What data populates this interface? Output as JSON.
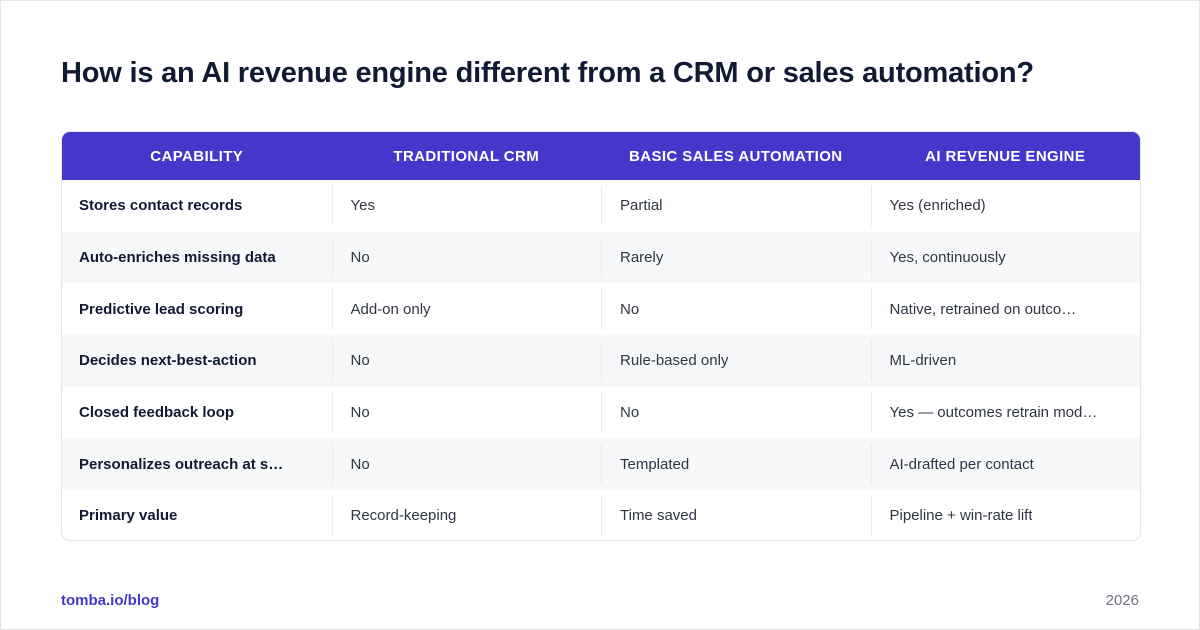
{
  "title": "How is an AI revenue engine different from a CRM or sales automation?",
  "table": {
    "headers": [
      "CAPABILITY",
      "TRADITIONAL CRM",
      "BASIC SALES AUTOMATION",
      "AI REVENUE ENGINE"
    ],
    "rows": [
      [
        "Stores contact records",
        "Yes",
        "Partial",
        "Yes (enriched)"
      ],
      [
        "Auto-enriches missing data",
        "No",
        "Rarely",
        "Yes, continuously"
      ],
      [
        "Predictive lead scoring",
        "Add-on only",
        "No",
        "Native, retrained on outco…"
      ],
      [
        "Decides next-best-action",
        "No",
        "Rule-based only",
        "ML-driven"
      ],
      [
        "Closed feedback loop",
        "No",
        "No",
        "Yes — outcomes retrain mod…"
      ],
      [
        "Personalizes outreach at s…",
        "No",
        "Templated",
        "AI-drafted per contact"
      ],
      [
        "Primary value",
        "Record-keeping",
        "Time saved",
        "Pipeline + win-rate lift"
      ]
    ]
  },
  "footer": {
    "link": "tomba.io/blog",
    "year": "2026"
  },
  "colors": {
    "accent": "#4338ca",
    "title": "#111a33",
    "row_alt": "#f7f8fa"
  }
}
